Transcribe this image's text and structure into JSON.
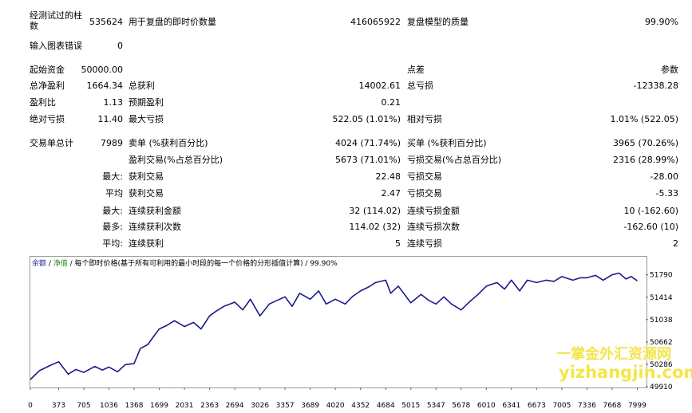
{
  "stats": {
    "bars_tested_label": "经测试过的柱数",
    "bars_tested_value": "535624",
    "ticks_label": "用于复盘的即时价数量",
    "ticks_value": "416065922",
    "quality_label": "复盘模型的质量",
    "quality_value": "99.90%",
    "chart_errors_label": "输入图表错误",
    "chart_errors_value": "0",
    "initial_deposit_label": "起始资金",
    "initial_deposit_value": "50000.00",
    "spread_label": "点差",
    "spread_value": "参数",
    "net_profit_label": "总净盈利",
    "net_profit_value": "1664.34",
    "gross_profit_label": "总获利",
    "gross_profit_value": "14002.61",
    "gross_loss_label": "总亏损",
    "gross_loss_value": "-12338.28",
    "profit_factor_label": "盈利比",
    "profit_factor_value": "1.13",
    "expected_payoff_label": "预期盈利",
    "expected_payoff_value": "0.21",
    "abs_drawdown_label": "绝对亏损",
    "abs_drawdown_value": "11.40",
    "max_drawdown_label": "最大亏损",
    "max_drawdown_value": "522.05 (1.01%)",
    "rel_drawdown_label": "相对亏损",
    "rel_drawdown_value": "1.01% (522.05)",
    "total_trades_label": "交易单总计",
    "total_trades_value": "7989",
    "short_label": "卖单 (%获利百分比)",
    "short_value": "4024 (71.74%)",
    "long_label": "买单 (%获利百分比)",
    "long_value": "3965 (70.26%)",
    "profit_trades_label": "盈利交易(%占总百分比)",
    "profit_trades_value": "5673 (71.01%)",
    "loss_trades_label": "亏损交易(%占总百分比)",
    "loss_trades_value": "2316 (28.99%)",
    "largest_prefix": "最大:",
    "largest_profit_label": "获利交易",
    "largest_profit_value": "22.48",
    "largest_loss_label": "亏损交易",
    "largest_loss_value": "-28.00",
    "average_prefix": "平均",
    "avg_profit_label": "获利交易",
    "avg_profit_value": "2.47",
    "avg_loss_label": "亏损交易",
    "avg_loss_value": "-5.33",
    "max_prefix": "最大:",
    "max_consec_wins_label": "连续获利金额",
    "max_consec_wins_value": "32 (114.02)",
    "max_consec_losses_label": "连续亏损金额",
    "max_consec_losses_value": "10 (-162.60)",
    "most_prefix": "最多:",
    "max_consec_profit_label": "连续获利次数",
    "max_consec_profit_value": "114.02 (32)",
    "max_consec_loss_label": "连续亏损次数",
    "max_consec_loss_value": "-162.60 (10)",
    "avg2_prefix": "平均:",
    "avg_consec_wins_label": "连续获利",
    "avg_consec_wins_value": "5",
    "avg_consec_losses_label": "连续亏损",
    "avg_consec_losses_value": "2"
  },
  "chart_header": {
    "balance": "余额",
    "sep1": " / ",
    "equity": "净值",
    "rest": " / 每个即时价格(基于所有可利用的最小时段的每一个价格的分形插值计算) / 99.90%"
  },
  "watermark": {
    "line1": "一掌金外汇资源网",
    "line2": "yizhangjin.com"
  },
  "chart_data": {
    "type": "line",
    "title": "",
    "xlabel": "",
    "ylabel": "",
    "xlim": [
      0,
      8100
    ],
    "ylim": [
      49910,
      51920
    ],
    "x_ticks": [
      0,
      373,
      705,
      1036,
      1368,
      1699,
      2031,
      2363,
      2694,
      3026,
      3357,
      3689,
      4020,
      4352,
      4684,
      5015,
      5347,
      5678,
      6010,
      6341,
      6673,
      7005,
      7336,
      7668,
      7999
    ],
    "y_ticks": [
      49910,
      50286,
      50662,
      51038,
      51414,
      51790
    ],
    "series": [
      {
        "color": "#1a1a8c",
        "x": [
          0,
          120,
          250,
          373,
          500,
          600,
          705,
          850,
          950,
          1036,
          1150,
          1250,
          1368,
          1450,
          1550,
          1650,
          1699,
          1800,
          1900,
          2031,
          2150,
          2250,
          2363,
          2450,
          2550,
          2694,
          2800,
          2900,
          3026,
          3150,
          3250,
          3357,
          3450,
          3550,
          3689,
          3800,
          3900,
          4020,
          4150,
          4250,
          4352,
          4450,
          4550,
          4684,
          4750,
          4850,
          5015,
          5150,
          5250,
          5347,
          5450,
          5550,
          5678,
          5800,
          5900,
          6010,
          6150,
          6250,
          6341,
          6450,
          6550,
          6673,
          6800,
          6900,
          7005,
          7150,
          7250,
          7336,
          7450,
          7550,
          7668,
          7760,
          7850,
          7920,
          7999
        ],
        "values": [
          50030,
          50180,
          50260,
          50330,
          50120,
          50200,
          50150,
          50250,
          50190,
          50240,
          50160,
          50280,
          50300,
          50550,
          50620,
          50800,
          50880,
          50940,
          51020,
          50920,
          50990,
          50880,
          51100,
          51180,
          51260,
          51330,
          51200,
          51380,
          51100,
          51300,
          51360,
          51420,
          51260,
          51480,
          51380,
          51520,
          51300,
          51380,
          51300,
          51430,
          51520,
          51580,
          51660,
          51700,
          51480,
          51600,
          51320,
          51460,
          51360,
          51300,
          51420,
          51300,
          51200,
          51350,
          51460,
          51600,
          51660,
          51550,
          51700,
          51520,
          51700,
          51660,
          51700,
          51680,
          51760,
          51700,
          51740,
          51740,
          51780,
          51700,
          51790,
          51820,
          51720,
          51760,
          51690
        ]
      }
    ]
  }
}
